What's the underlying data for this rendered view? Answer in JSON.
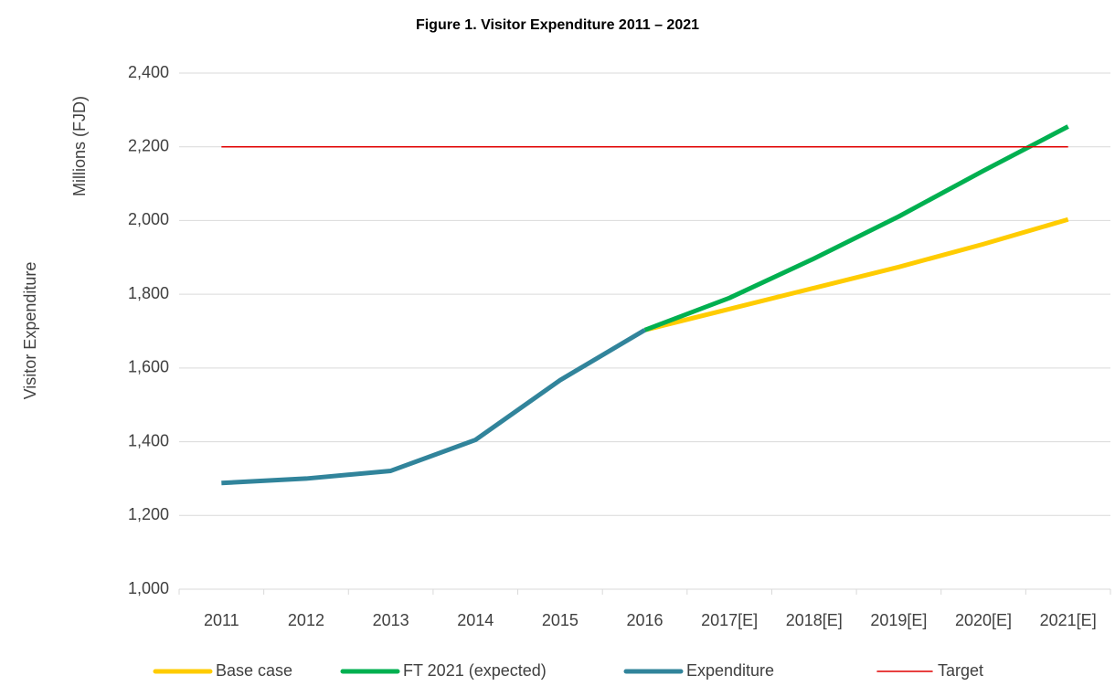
{
  "chart_data": {
    "type": "line",
    "title": "Figure 1. Visitor Expenditure 2011 – 2021",
    "y_label": "Visitor Expenditure",
    "y_unit_label": "Millions (FJD)",
    "categories": [
      "2011",
      "2012",
      "2013",
      "2014",
      "2015",
      "2016",
      "2017[E]",
      "2018[E]",
      "2019[E]",
      "2020[E]",
      "2021[E]"
    ],
    "series": [
      {
        "name": "Base case",
        "color": "#ffcc00",
        "width": 5,
        "values": [
          null,
          null,
          null,
          null,
          null,
          1703,
          1760,
          1817,
          1874,
          1936,
          2003
        ]
      },
      {
        "name": "FT 2021 (expected)",
        "color": "#00b050",
        "width": 5,
        "values": [
          null,
          null,
          null,
          null,
          null,
          1703,
          1790,
          1897,
          2011,
          2135,
          2255
        ]
      },
      {
        "name": "Expenditure",
        "color": "#31849b",
        "width": 5,
        "values": [
          1288,
          1300,
          1321,
          1405,
          1567,
          1703,
          null,
          null,
          null,
          null,
          null
        ]
      },
      {
        "name": "Target",
        "color": "#e00000",
        "width": 1.5,
        "values": [
          2200,
          2200,
          2200,
          2200,
          2200,
          2200,
          2200,
          2200,
          2200,
          2200,
          2200
        ]
      }
    ],
    "ylim": [
      1000,
      2400
    ],
    "yticks": [
      {
        "value": 1000,
        "label": "1,000"
      },
      {
        "value": 1200,
        "label": "1,200"
      },
      {
        "value": 1400,
        "label": "1,400"
      },
      {
        "value": 1600,
        "label": "1,600"
      },
      {
        "value": 1800,
        "label": "1,800"
      },
      {
        "value": 2000,
        "label": "2,000"
      },
      {
        "value": 2200,
        "label": "2,200"
      },
      {
        "value": 2400,
        "label": "2,400"
      }
    ],
    "grid": true,
    "legend": "bottom"
  }
}
